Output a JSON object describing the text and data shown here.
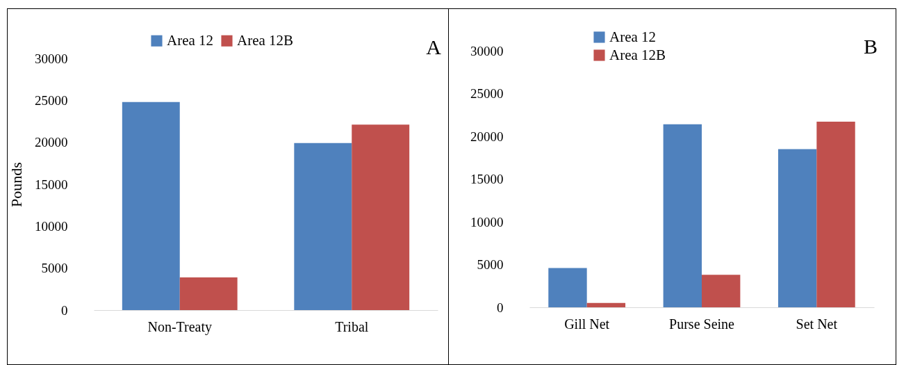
{
  "chart_data": [
    {
      "type": "bar",
      "ylabel": "Pounds",
      "categories": [
        "Non-Treaty",
        "Tribal"
      ],
      "series": [
        {
          "name": "Area 12",
          "color": "#4f81bd",
          "values": [
            24800,
            19900
          ]
        },
        {
          "name": "Area 12B",
          "color": "#c0504d",
          "values": [
            3900,
            22100
          ]
        }
      ],
      "ylim": [
        0,
        30000
      ],
      "yticks": [
        0,
        5000,
        10000,
        15000,
        20000,
        25000,
        30000
      ],
      "legend": "top",
      "annotations": [
        "A"
      ]
    },
    {
      "type": "bar",
      "categories": [
        "Gill Net",
        "Purse Seine",
        "Set Net"
      ],
      "series": [
        {
          "name": "Area 12",
          "color": "#4f81bd",
          "values": [
            4600,
            21400,
            18500
          ]
        },
        {
          "name": "Area 12B",
          "color": "#c0504d",
          "values": [
            500,
            3800,
            21700
          ]
        }
      ],
      "ylim": [
        0,
        30000
      ],
      "yticks": [
        0,
        5000,
        10000,
        15000,
        20000,
        25000,
        30000
      ],
      "legend": "top left",
      "annotations": [
        "B"
      ]
    }
  ]
}
